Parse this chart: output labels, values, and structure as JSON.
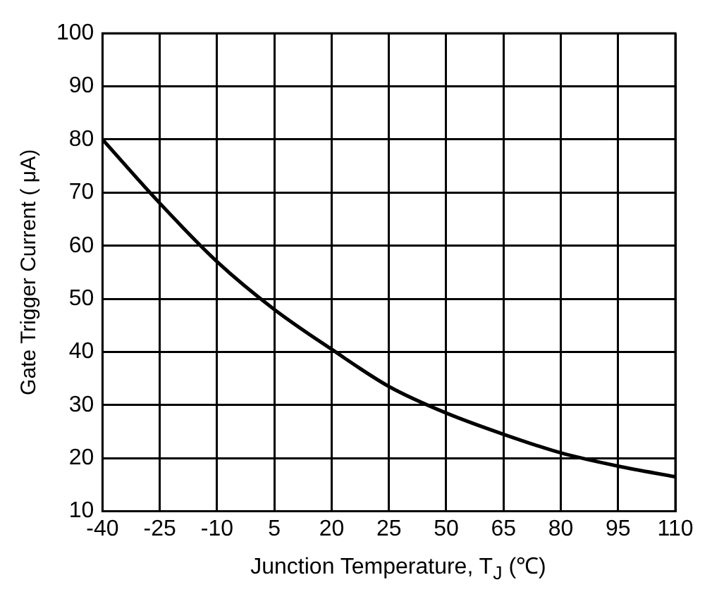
{
  "chart_data": {
    "type": "line",
    "xlabel": "Junction Temperature, T$_{J}$ (℃)",
    "ylabel": "Gate Trigger Current ( μA)",
    "categories": [
      "-40",
      "-25",
      "-10",
      "5",
      "20",
      "25",
      "50",
      "65",
      "80",
      "95",
      "110"
    ],
    "series": [
      {
        "color": "#000000",
        "values": [
          80,
          68,
          57,
          48,
          40.5,
          33.5,
          28.5,
          24.5,
          21,
          18.5,
          16.5
        ]
      }
    ],
    "ylim": [
      10,
      100
    ],
    "yticks": [
      10,
      20,
      30,
      40,
      50,
      60,
      70,
      80,
      90,
      100
    ],
    "grid": true,
    "marker": "none",
    "line_style": "solid",
    "legend": false
  }
}
